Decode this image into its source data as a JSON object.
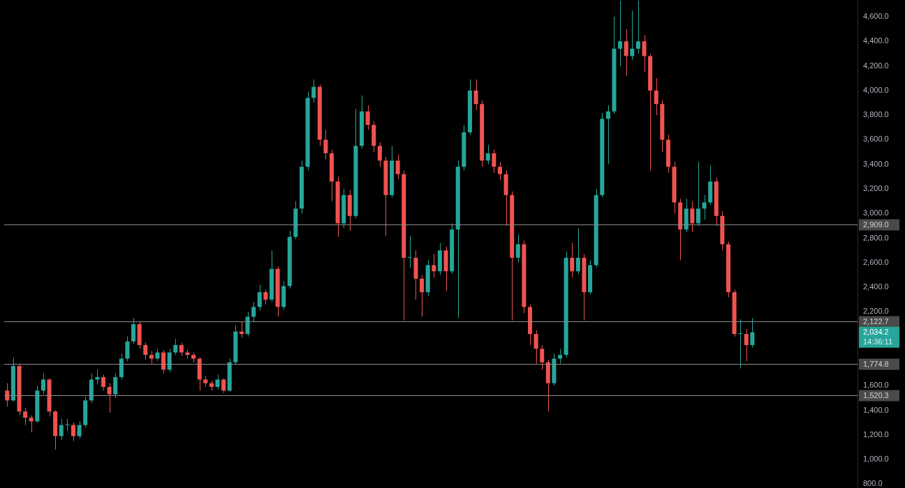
{
  "chart_data": {
    "type": "candlestick",
    "categories": [
      null,
      null,
      null,
      null,
      null,
      null,
      null,
      null,
      null,
      null,
      null,
      null,
      null,
      null,
      null,
      null,
      null,
      null,
      null,
      null,
      null,
      null,
      null,
      null,
      null,
      null,
      null,
      null,
      null,
      null,
      null,
      null,
      null,
      null,
      null,
      null,
      null,
      null,
      null,
      null,
      null,
      null,
      null,
      null,
      null,
      null,
      null,
      null,
      null,
      null,
      null,
      null,
      null,
      null,
      null,
      null,
      null,
      null,
      null,
      null,
      null,
      null,
      null,
      null,
      null,
      null,
      null,
      null,
      null,
      null,
      null,
      null,
      null,
      null,
      null,
      null,
      null,
      null,
      null,
      null,
      null,
      null,
      null,
      null,
      null,
      null,
      null,
      null,
      null,
      null,
      null,
      null,
      null,
      null,
      null,
      null,
      null,
      null,
      null,
      null,
      null,
      null,
      null,
      null,
      null,
      null,
      null,
      null,
      null,
      null,
      null,
      null,
      null,
      null,
      null,
      null,
      null,
      null,
      null,
      null,
      null,
      null,
      null,
      null,
      null,
      null,
      null,
      null,
      null,
      null,
      null,
      null,
      null,
      null,
      null,
      null,
      null,
      null,
      null,
      null,
      null,
      null
    ],
    "ohlc": [
      [
        1560,
        1620,
        1430,
        1480
      ],
      [
        1480,
        1830,
        1470,
        1760
      ],
      [
        1760,
        1780,
        1360,
        1390
      ],
      [
        1390,
        1420,
        1280,
        1340
      ],
      [
        1340,
        1360,
        1220,
        1310
      ],
      [
        1310,
        1600,
        1300,
        1560
      ],
      [
        1560,
        1700,
        1530,
        1650
      ],
      [
        1650,
        1660,
        1350,
        1390
      ],
      [
        1390,
        1400,
        1080,
        1190
      ],
      [
        1190,
        1330,
        1160,
        1280
      ],
      [
        1280,
        1330,
        1230,
        1280
      ],
      [
        1280,
        1300,
        1150,
        1190
      ],
      [
        1190,
        1310,
        1170,
        1280
      ],
      [
        1280,
        1510,
        1260,
        1480
      ],
      [
        1480,
        1700,
        1460,
        1650
      ],
      [
        1650,
        1730,
        1610,
        1670
      ],
      [
        1670,
        1690,
        1560,
        1590
      ],
      [
        1590,
        1620,
        1380,
        1530
      ],
      [
        1530,
        1700,
        1500,
        1670
      ],
      [
        1670,
        1860,
        1650,
        1820
      ],
      [
        1820,
        2000,
        1800,
        1960
      ],
      [
        1960,
        2150,
        1940,
        2100
      ],
      [
        2100,
        2120,
        1900,
        1930
      ],
      [
        1930,
        1950,
        1810,
        1850
      ],
      [
        1850,
        1880,
        1780,
        1820
      ],
      [
        1820,
        1900,
        1800,
        1870
      ],
      [
        1870,
        1890,
        1700,
        1730
      ],
      [
        1730,
        1900,
        1710,
        1870
      ],
      [
        1870,
        1980,
        1850,
        1930
      ],
      [
        1930,
        1950,
        1840,
        1870
      ],
      [
        1870,
        1890,
        1820,
        1850
      ],
      [
        1850,
        1870,
        1790,
        1820
      ],
      [
        1820,
        1830,
        1560,
        1650
      ],
      [
        1650,
        1680,
        1590,
        1620
      ],
      [
        1620,
        1640,
        1560,
        1590
      ],
      [
        1590,
        1690,
        1570,
        1650
      ],
      [
        1650,
        1660,
        1540,
        1560
      ],
      [
        1560,
        1820,
        1550,
        1790
      ],
      [
        1790,
        2090,
        1770,
        2040
      ],
      [
        2040,
        2120,
        1990,
        2020
      ],
      [
        2020,
        2200,
        2000,
        2160
      ],
      [
        2160,
        2280,
        2120,
        2240
      ],
      [
        2240,
        2420,
        2210,
        2360
      ],
      [
        2360,
        2380,
        2260,
        2300
      ],
      [
        2300,
        2700,
        2280,
        2550
      ],
      [
        2550,
        2570,
        2160,
        2240
      ],
      [
        2240,
        2450,
        2220,
        2410
      ],
      [
        2410,
        2860,
        2390,
        2810
      ],
      [
        2810,
        3100,
        2790,
        3040
      ],
      [
        3040,
        3430,
        3000,
        3380
      ],
      [
        3380,
        3990,
        3350,
        3940
      ],
      [
        3940,
        4090,
        3900,
        4030
      ],
      [
        4030,
        4050,
        3550,
        3600
      ],
      [
        3600,
        3680,
        3440,
        3490
      ],
      [
        3490,
        3520,
        3100,
        3260
      ],
      [
        3260,
        3300,
        2810,
        2920
      ],
      [
        2920,
        3200,
        2880,
        3150
      ],
      [
        3150,
        3190,
        2860,
        2980
      ],
      [
        2980,
        3850,
        2960,
        3550
      ],
      [
        3550,
        3960,
        3530,
        3830
      ],
      [
        3830,
        3880,
        3680,
        3720
      ],
      [
        3720,
        3750,
        3500,
        3550
      ],
      [
        3550,
        3580,
        3380,
        3430
      ],
      [
        3430,
        3460,
        2820,
        3150
      ],
      [
        3150,
        3550,
        3130,
        3430
      ],
      [
        3430,
        3480,
        3280,
        3320
      ],
      [
        3320,
        3350,
        2130,
        2640
      ],
      [
        2640,
        2820,
        2560,
        2640
      ],
      [
        2640,
        2700,
        2300,
        2470
      ],
      [
        2470,
        2500,
        2160,
        2360
      ],
      [
        2360,
        2620,
        2330,
        2580
      ],
      [
        2580,
        2670,
        2480,
        2530
      ],
      [
        2530,
        2760,
        2500,
        2700
      ],
      [
        2700,
        2730,
        2370,
        2530
      ],
      [
        2530,
        2920,
        2510,
        2870
      ],
      [
        2870,
        3430,
        2150,
        3380
      ],
      [
        3380,
        3720,
        3350,
        3660
      ],
      [
        3660,
        4090,
        3640,
        4000
      ],
      [
        4000,
        4090,
        3840,
        3890
      ],
      [
        3890,
        3920,
        3380,
        3430
      ],
      [
        3430,
        3560,
        3400,
        3490
      ],
      [
        3490,
        3520,
        3330,
        3380
      ],
      [
        3380,
        3420,
        3270,
        3320
      ],
      [
        3320,
        3350,
        2900,
        3150
      ],
      [
        3150,
        3180,
        2130,
        2640
      ],
      [
        2640,
        2830,
        2600,
        2750
      ],
      [
        2750,
        2780,
        2190,
        2240
      ],
      [
        2240,
        2260,
        1930,
        2020
      ],
      [
        2020,
        2050,
        1780,
        1900
      ],
      [
        1900,
        1930,
        1730,
        1790
      ],
      [
        1790,
        1810,
        1390,
        1620
      ],
      [
        1620,
        1860,
        1600,
        1820
      ],
      [
        1820,
        1900,
        1780,
        1850
      ],
      [
        1850,
        2690,
        1830,
        2640
      ],
      [
        2640,
        2760,
        2480,
        2530
      ],
      [
        2530,
        2880,
        2510,
        2640
      ],
      [
        2640,
        2670,
        2130,
        2360
      ],
      [
        2360,
        2620,
        2340,
        2580
      ],
      [
        2580,
        3200,
        2560,
        3150
      ],
      [
        3150,
        3820,
        3130,
        3770
      ],
      [
        3770,
        3880,
        3400,
        3830
      ],
      [
        3830,
        4600,
        3810,
        4340
      ],
      [
        4340,
        4730,
        4200,
        4400
      ],
      [
        4400,
        4500,
        4120,
        4280
      ],
      [
        4280,
        4650,
        4250,
        4340
      ],
      [
        4340,
        4730,
        4300,
        4400
      ],
      [
        4400,
        4450,
        4150,
        4280
      ],
      [
        4280,
        4300,
        3350,
        4000
      ],
      [
        4000,
        4100,
        3800,
        3890
      ],
      [
        3890,
        3920,
        3500,
        3600
      ],
      [
        3600,
        3640,
        3330,
        3380
      ],
      [
        3380,
        3420,
        3000,
        3090
      ],
      [
        3090,
        3120,
        2620,
        2870
      ],
      [
        2870,
        3120,
        2850,
        3040
      ],
      [
        3040,
        3100,
        2850,
        2920
      ],
      [
        2920,
        3420,
        2900,
        3040
      ],
      [
        3040,
        3150,
        2950,
        3090
      ],
      [
        3090,
        3390,
        3070,
        3260
      ],
      [
        3260,
        3290,
        2900,
        2980
      ],
      [
        2980,
        3020,
        2700,
        2750
      ],
      [
        2750,
        2770,
        2320,
        2360
      ],
      [
        2360,
        2380,
        2000,
        2020
      ],
      [
        2020,
        2140,
        1740,
        2020
      ],
      [
        2020,
        2060,
        1800,
        1930
      ],
      [
        1930,
        2150,
        1910,
        2034.2
      ],
      null,
      null,
      null,
      null,
      null,
      null,
      null,
      null,
      null,
      null,
      null,
      null,
      null,
      null,
      null,
      null,
      null
    ],
    "ylim": [
      768,
      4736
    ],
    "yticks": [
      {
        "value": 800,
        "label": "800.0"
      },
      {
        "value": 1000,
        "label": "1,000.0"
      },
      {
        "value": 1200,
        "label": "1,200.0"
      },
      {
        "value": 1400,
        "label": "1,400.0"
      },
      {
        "value": 1600,
        "label": "1,600.0"
      },
      {
        "value": 2200,
        "label": "2,200.0"
      },
      {
        "value": 2400,
        "label": "2,400.0"
      },
      {
        "value": 2600,
        "label": "2,600.0"
      },
      {
        "value": 2800,
        "label": "2,800.0"
      },
      {
        "value": 3000,
        "label": "3,000.0"
      },
      {
        "value": 3200,
        "label": "3,200.0"
      },
      {
        "value": 3400,
        "label": "3,400.0"
      },
      {
        "value": 3600,
        "label": "3,600.0"
      },
      {
        "value": 3800,
        "label": "3,800.0"
      },
      {
        "value": 4000,
        "label": "4,000.0"
      },
      {
        "value": 4200,
        "label": "4,200.0"
      },
      {
        "value": 4400,
        "label": "4,400.0"
      },
      {
        "value": 4600,
        "label": "4,600.0"
      }
    ],
    "ref_lines": [
      {
        "axis": "y",
        "value": 2909.0,
        "label": "2,909.0",
        "color": "#8c8c8c"
      },
      {
        "axis": "y",
        "value": 2122.7,
        "label": "2,122.7",
        "color": "#8c8c8c"
      },
      {
        "axis": "y",
        "value": 1774.8,
        "label": "1,774.8",
        "color": "#8c8c8c"
      },
      {
        "axis": "y",
        "value": 1520.3,
        "label": "1,520.3",
        "color": "#8c8c8c"
      }
    ],
    "annotations": [
      "2,034.2",
      "14:36:11"
    ],
    "tick_labels": "y",
    "grid": false,
    "legend": false
  }
}
